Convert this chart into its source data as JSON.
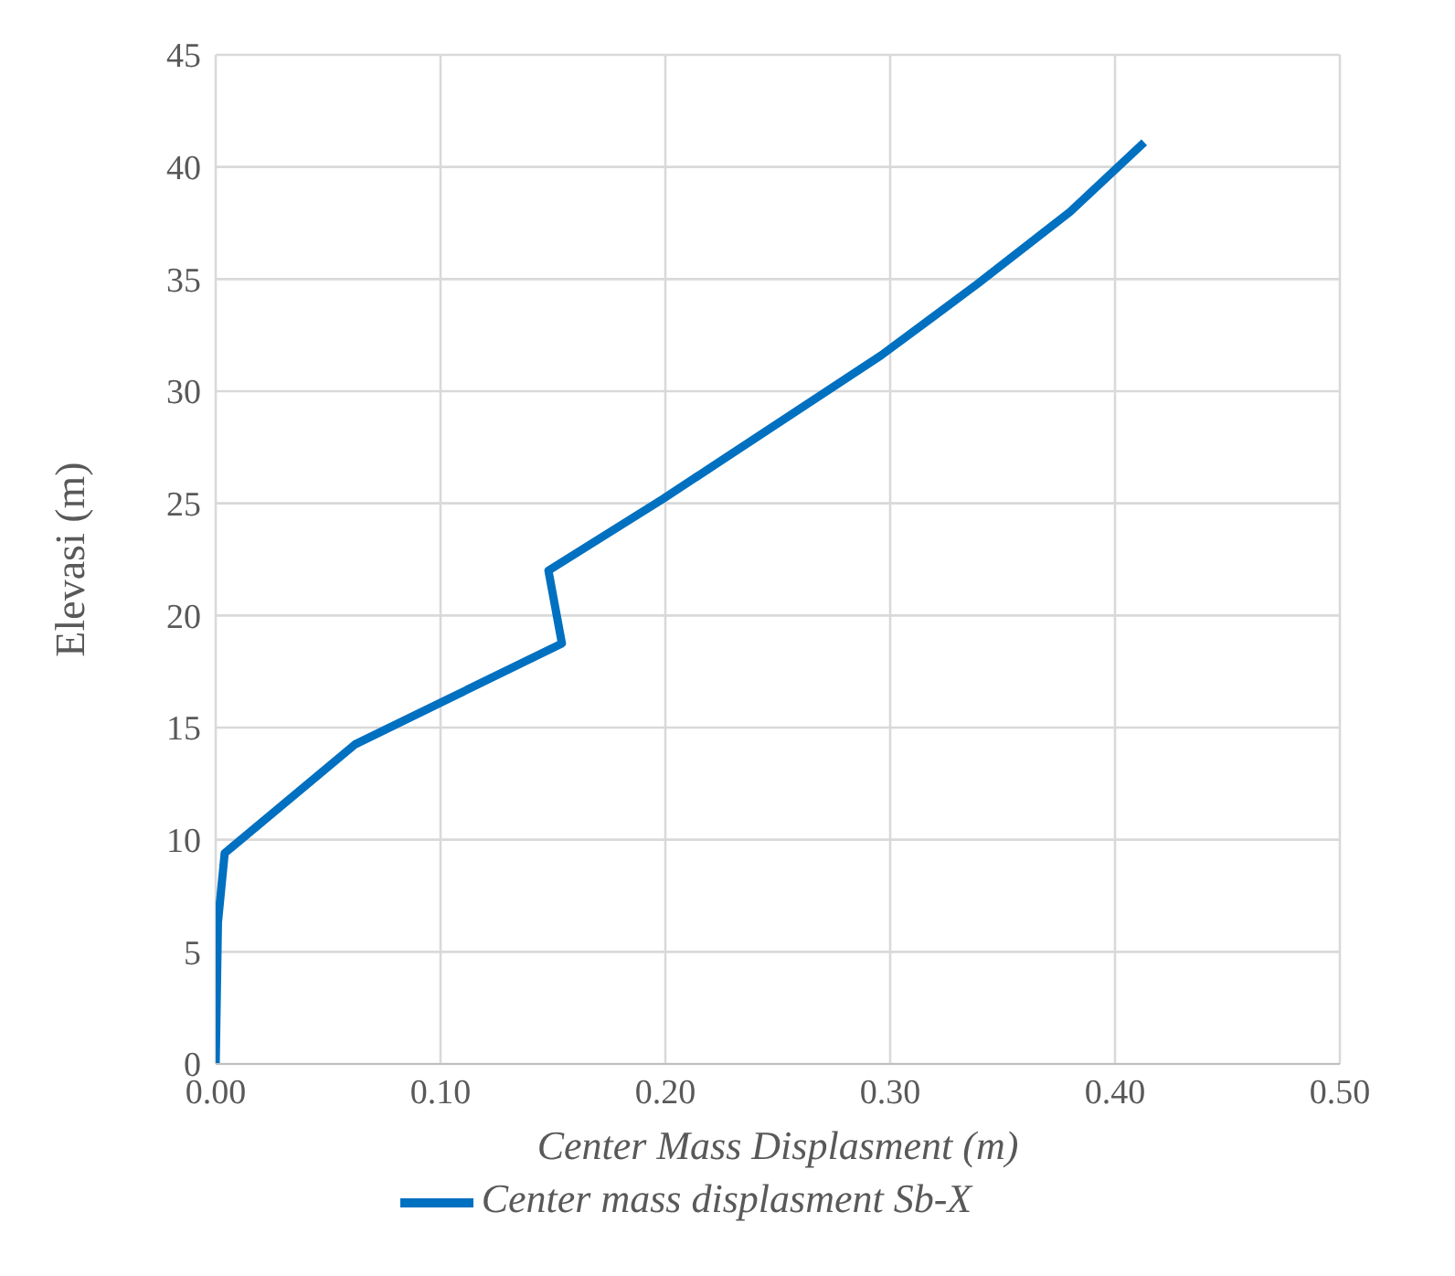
{
  "chart_data": {
    "type": "line",
    "xlabel": "Center Mass Displasment (m)",
    "ylabel": "Elevasi (m)",
    "x": [
      0,
      0.001,
      0.004,
      0.062,
      0.154,
      0.148,
      0.199,
      0.296,
      0.339,
      0.38,
      0.413
    ],
    "series": [
      {
        "name": "Center mass displasment Sb-X",
        "color": "#0070c0",
        "values": [
          0,
          6.3,
          9.4,
          14.25,
          18.75,
          22,
          25.2,
          31.6,
          34.8,
          38,
          41.1
        ]
      }
    ],
    "xlim": [
      0,
      0.5
    ],
    "xticks": [
      {
        "value": 0,
        "label": "0.00"
      },
      {
        "value": 0.1,
        "label": "0.10"
      },
      {
        "value": 0.2,
        "label": "0.20"
      },
      {
        "value": 0.3,
        "label": "0.30"
      },
      {
        "value": 0.4,
        "label": "0.40"
      },
      {
        "value": 0.5,
        "label": "0.50"
      }
    ],
    "ylim": [
      0,
      45
    ],
    "yticks": [
      0,
      5,
      10,
      15,
      20,
      25,
      30,
      35,
      40,
      45
    ],
    "grid": true,
    "legend": "bottom",
    "marker": "none",
    "line_style": "solid"
  }
}
